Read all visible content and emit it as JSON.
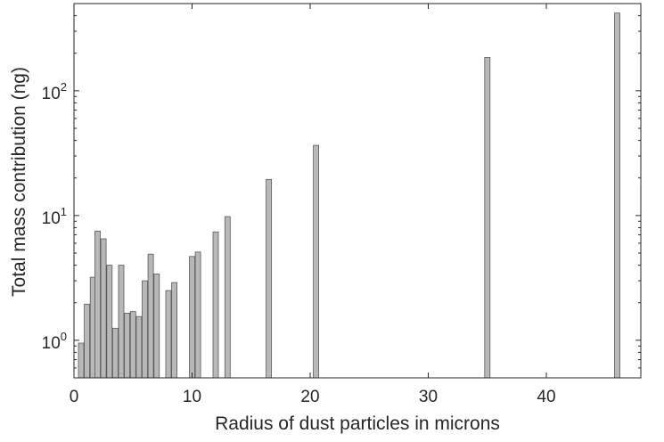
{
  "chart_data": {
    "type": "bar",
    "title": "",
    "xlabel": "Radius of dust particles in microns",
    "ylabel": "Total mass contribution (ng)",
    "xscale": "linear",
    "yscale": "log",
    "xlim": [
      0,
      48
    ],
    "ylim": [
      0.5,
      500
    ],
    "xticks": [
      {
        "value": 0,
        "label": "0"
      },
      {
        "value": 10,
        "label": "10"
      },
      {
        "value": 20,
        "label": "20"
      },
      {
        "value": 30,
        "label": "30"
      },
      {
        "value": 40,
        "label": "40"
      }
    ],
    "yticks": [
      {
        "value": 1,
        "base": "10",
        "exp": "0"
      },
      {
        "value": 10,
        "base": "10",
        "exp": "1"
      },
      {
        "value": 100,
        "base": "10",
        "exp": "2"
      }
    ],
    "bar_color": "#b8b8b8",
    "bar_edge_color": "#595959",
    "grid": false,
    "box": true,
    "x": [
      0.6,
      1.1,
      1.6,
      2.0,
      2.5,
      3.0,
      3.5,
      4.0,
      4.5,
      5.0,
      5.5,
      6.0,
      6.5,
      7.0,
      8.0,
      8.5,
      10.0,
      10.5,
      12.0,
      13.0,
      16.5,
      20.5,
      35.0,
      46.0
    ],
    "values": [
      0.95,
      1.95,
      3.2,
      7.5,
      6.5,
      4.0,
      1.25,
      4.0,
      1.65,
      1.7,
      1.55,
      3.0,
      4.9,
      3.4,
      2.5,
      2.9,
      4.7,
      5.1,
      7.4,
      9.8,
      19.5,
      36.5,
      185,
      420
    ]
  }
}
